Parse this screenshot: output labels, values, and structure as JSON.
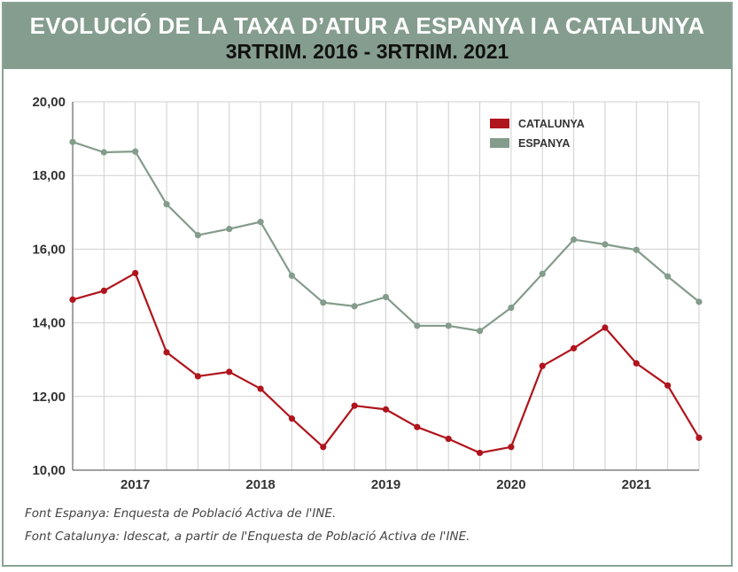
{
  "header": {
    "title": "EVOLUCIÓ DE LA TAXA D’ATUR A ESPANYA I A CATALUNYA",
    "subtitle": "3RTRIM. 2016 - 3RTRIM. 2021"
  },
  "sources": [
    "Font Espanya: Enquesta de Població Activa de l'INE.",
    "Font Catalunya: Idescat, a partir de l'Enquesta de Població Activa de l'INE."
  ],
  "colors": {
    "catalunya": "#b0141c",
    "espanya": "#849c8c",
    "header_bg": "#859d8e",
    "grid": "#cfcfcf"
  },
  "chart_data": {
    "type": "line",
    "x": [
      "3T2016",
      "4T2016",
      "1T2017",
      "2T2017",
      "3T2017",
      "4T2017",
      "1T2018",
      "2T2018",
      "3T2018",
      "4T2018",
      "1T2019",
      "2T2019",
      "3T2019",
      "4T2019",
      "1T2020",
      "2T2020",
      "3T2020",
      "4T2020",
      "1T2021",
      "2T2021",
      "3T2021"
    ],
    "x_tick_labels": [
      "2017",
      "2018",
      "2019",
      "2020",
      "2021"
    ],
    "x_tick_positions": [
      "1T2017",
      "1T2018",
      "1T2019",
      "1T2020",
      "1T2021"
    ],
    "y_tick_labels": [
      "10,00",
      "12,00",
      "14,00",
      "16,00",
      "18,00",
      "20,00"
    ],
    "ylim": [
      10,
      20
    ],
    "grid": true,
    "legend_placement": "top-right",
    "series": [
      {
        "name": "CATALUNYA",
        "color": "#b0141c",
        "values": [
          14.63,
          14.87,
          15.35,
          13.2,
          12.55,
          12.67,
          12.21,
          11.4,
          10.63,
          11.75,
          11.65,
          11.17,
          10.85,
          10.47,
          10.63,
          12.83,
          13.31,
          13.87,
          12.9,
          12.3,
          10.88
        ]
      },
      {
        "name": "ESPANYA",
        "color": "#849c8c",
        "values": [
          18.91,
          18.63,
          18.65,
          17.22,
          16.38,
          16.55,
          16.74,
          15.28,
          14.55,
          14.45,
          14.7,
          13.92,
          13.92,
          13.78,
          14.41,
          15.33,
          16.26,
          16.13,
          15.98,
          15.26,
          14.57
        ]
      }
    ],
    "title": "EVOLUCIÓ DE LA TAXA D’ATUR A ESPANYA I A CATALUNYA",
    "subtitle": "3RTRIM. 2016 - 3RTRIM. 2021",
    "xlabel": "",
    "ylabel": ""
  }
}
